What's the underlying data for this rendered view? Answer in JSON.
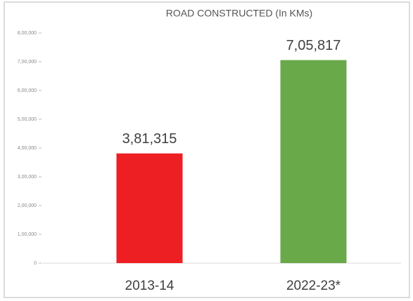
{
  "chart_data": {
    "type": "bar",
    "title": "ROAD CONSTRUCTED (In KMs)",
    "categories": [
      "2013-14",
      "2022-23*"
    ],
    "values": [
      381315,
      705817
    ],
    "value_labels": [
      "3,81,315",
      "7,05,817"
    ],
    "colors": [
      "#ee1f23",
      "#6aa94a"
    ],
    "ylim": [
      0,
      800000
    ],
    "yticks": [
      0,
      {
        "value": 100000,
        "label": "1,00,000"
      },
      {
        "value": 200000,
        "label": "2,00,000"
      },
      {
        "value": 300000,
        "label": "3,00,000"
      },
      {
        "value": 400000,
        "label": "4,00,000"
      },
      {
        "value": 500000,
        "label": "5,00,000"
      },
      {
        "value": 600000,
        "label": "6,00,000"
      },
      {
        "value": 700000,
        "label": "7,00,000"
      },
      {
        "value": 800000,
        "label": "8,00,000"
      }
    ],
    "grid": false
  }
}
